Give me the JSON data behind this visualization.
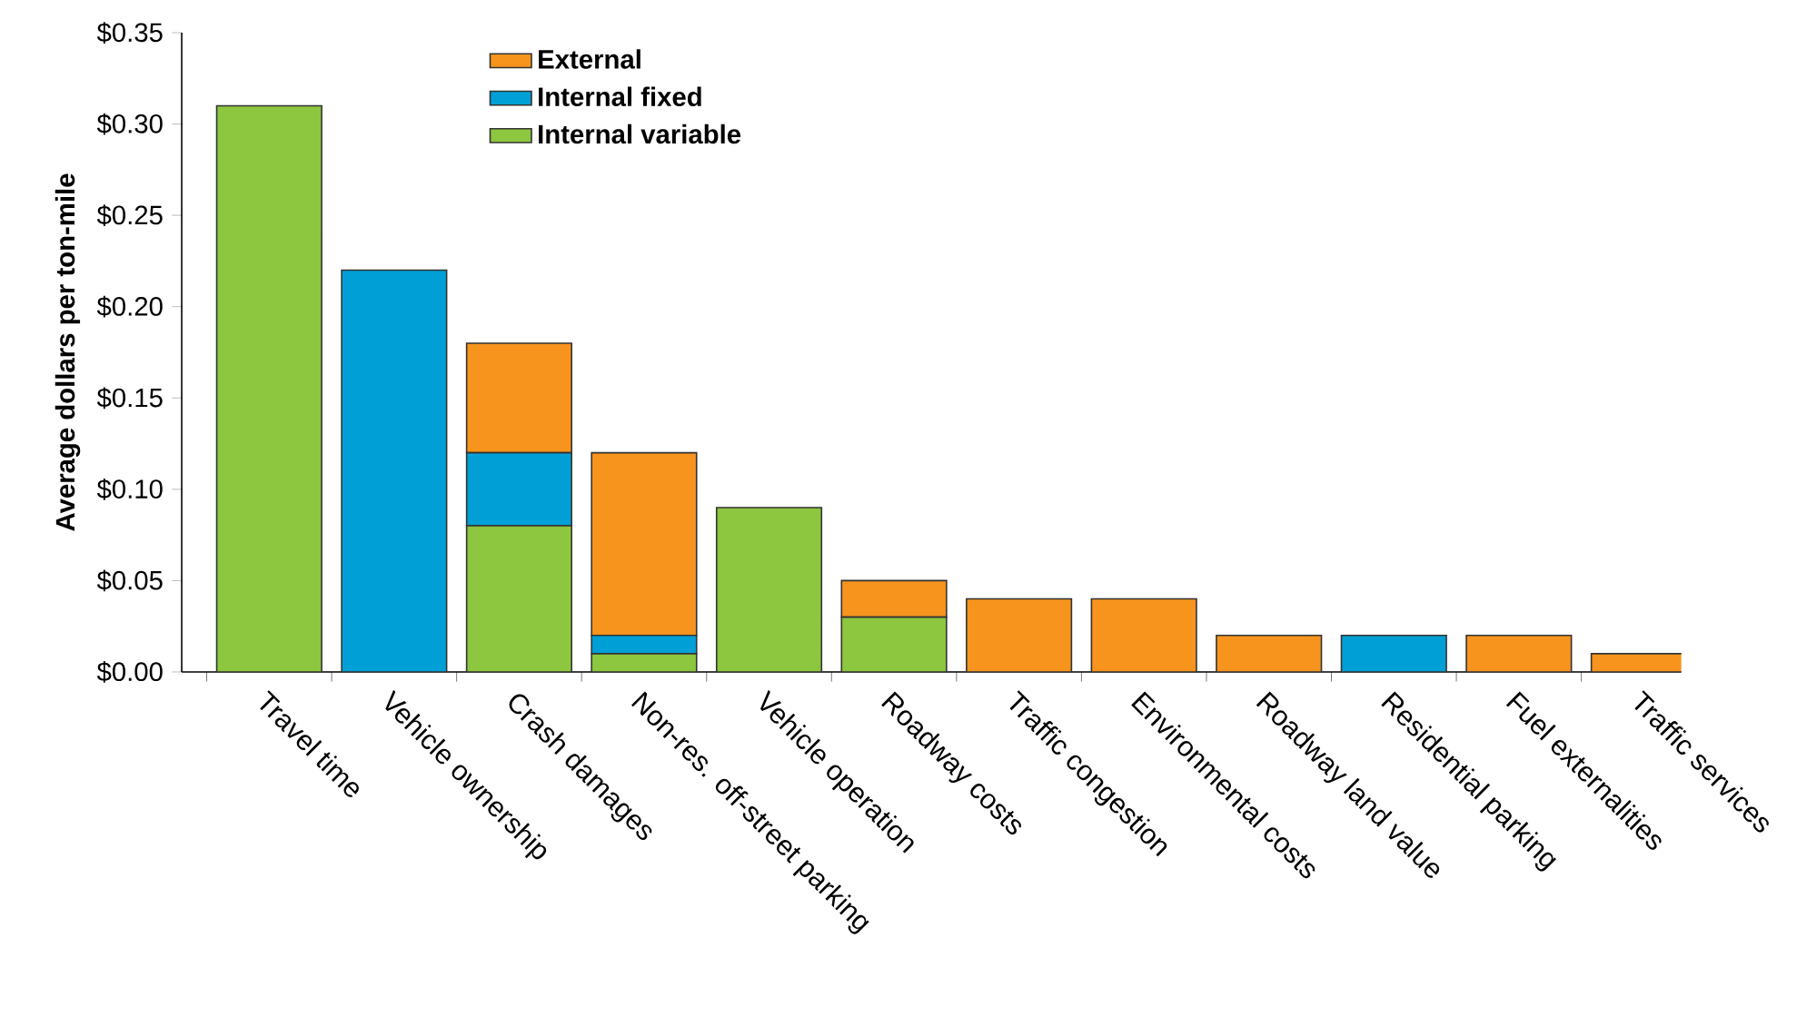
{
  "chart_data": {
    "type": "bar",
    "stacked": true,
    "ylabel": "Average dollars per ton-mile",
    "categories": [
      "Travel time",
      "Vehicle ownership",
      "Crash damages",
      "Non-res. off-street parking",
      "Vehicle operation",
      "Roadway costs",
      "Traffic congestion",
      "Environmental costs",
      "Roadway land value",
      "Residential parking",
      "Fuel externalities",
      "Traffic services"
    ],
    "series": [
      {
        "name": "Internal variable",
        "color": "#8dc63f",
        "values": [
          0.31,
          0,
          0.08,
          0.01,
          0.09,
          0.03,
          0,
          0,
          0,
          0,
          0,
          0
        ]
      },
      {
        "name": "Internal fixed",
        "color": "#00a0d6",
        "values": [
          0,
          0.22,
          0.04,
          0.01,
          0,
          0,
          0,
          0,
          0,
          0.02,
          0,
          0
        ]
      },
      {
        "name": "External",
        "color": "#f7941d",
        "values": [
          0,
          0,
          0.06,
          0.1,
          0,
          0.02,
          0.04,
          0.04,
          0.02,
          0,
          0.02,
          0.01
        ]
      }
    ],
    "ylim": [
      0,
      0.35
    ],
    "yticks": [
      {
        "value": 0,
        "label": "$0.00"
      },
      {
        "value": 0.05,
        "label": "$0.05"
      },
      {
        "value": 0.1,
        "label": "$0.10"
      },
      {
        "value": 0.15,
        "label": "$0.15"
      },
      {
        "value": 0.2,
        "label": "$0.20"
      },
      {
        "value": 0.25,
        "label": "$0.25"
      },
      {
        "value": 0.3,
        "label": "$0.30"
      },
      {
        "value": 0.35,
        "label": "$0.35"
      }
    ],
    "legend": "top left",
    "grid": false
  }
}
